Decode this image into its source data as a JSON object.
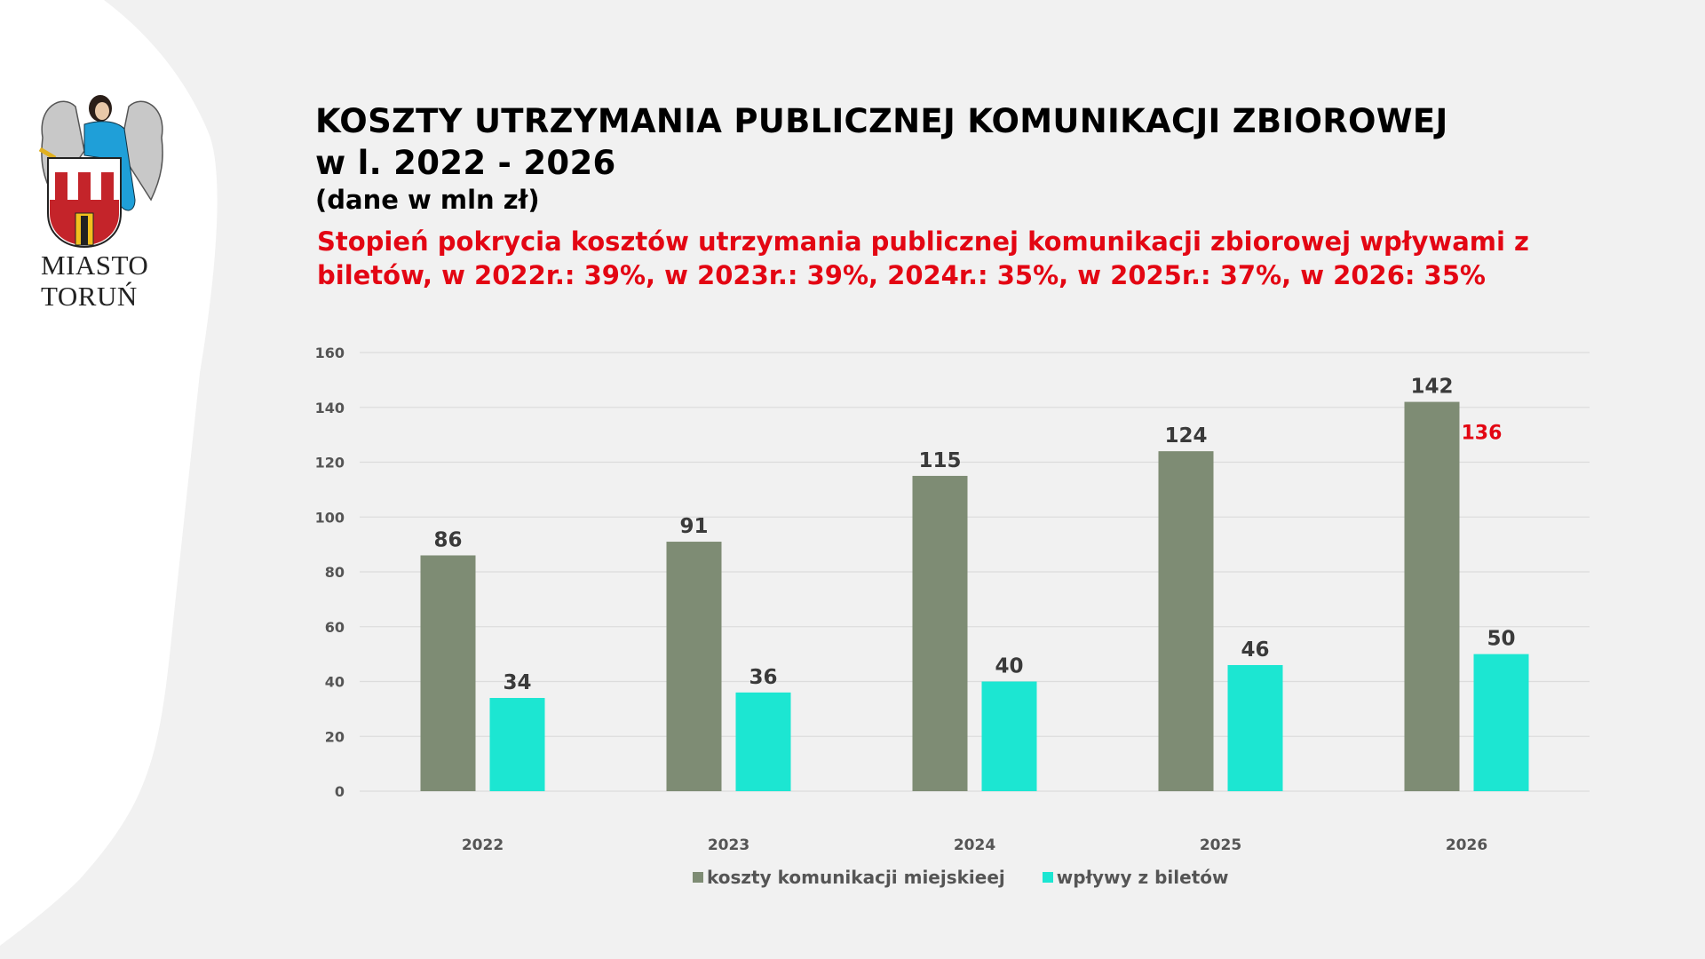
{
  "logo": {
    "line1": "MIASTO",
    "line2": "TORUŃ",
    "icon": "torun-coat-of-arms-icon"
  },
  "header": {
    "title_line1": "KOSZTY UTRZYMANIA PUBLICZNEJ KOMUNIKACJI ZBIOROWEJ",
    "title_line2": "w l. 2022 - 2026",
    "subtitle": "(dane w mln zł)",
    "coverage_note": "Stopień pokrycia kosztów utrzymania publicznej komunikacji zbiorowej wpływami z biletów, w 2022r.: 39%, w 2023r.: 39%, 2024r.: 35%, w 2025r.: 37%, w 2026: 35%"
  },
  "colors": {
    "costs": "#7e8c74",
    "revenue": "#1ce6d2",
    "accent_red": "#e30613",
    "value_label": "#3a3a3a",
    "axis_label": "#555555"
  },
  "chart_data": {
    "type": "bar",
    "title": "KOSZTY UTRZYMANIA PUBLICZNEJ KOMUNIKACJI ZBIOROWEJ w l. 2022 - 2026",
    "subtitle": "(dane w mln zł)",
    "xlabel": "",
    "ylabel": "",
    "categories": [
      "2022",
      "2023",
      "2024",
      "2025",
      "2026"
    ],
    "series": [
      {
        "name": "koszty komunikacji miejskieej",
        "values": [
          86,
          91,
          115,
          124,
          142
        ]
      },
      {
        "name": "wpływy z biletów",
        "values": [
          34,
          36,
          40,
          46,
          50
        ]
      }
    ],
    "annotations": [
      {
        "category": "2026",
        "series": "koszty komunikacji miejskieej",
        "text": "136",
        "color": "red"
      }
    ],
    "ylim": [
      0,
      160
    ],
    "yticks": [
      0,
      20,
      40,
      60,
      80,
      100,
      120,
      140,
      160
    ],
    "grid": true,
    "legend": "bottom-center"
  }
}
